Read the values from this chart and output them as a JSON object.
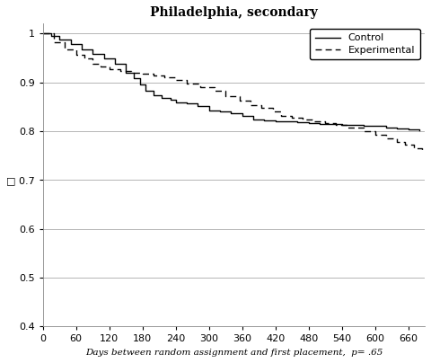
{
  "title": "Philadelphia, secondary",
  "xlabel": "Days between random assignment and first placement,  p= .65",
  "ylabel": "",
  "xlim": [
    0,
    690
  ],
  "ylim": [
    0.4,
    1.02
  ],
  "xticks": [
    0,
    60,
    120,
    180,
    240,
    300,
    360,
    420,
    480,
    540,
    600,
    660
  ],
  "yticks": [
    0.4,
    0.5,
    0.6,
    0.7,
    0.8,
    0.9,
    1.0
  ],
  "control_x": [
    0,
    15,
    30,
    50,
    70,
    90,
    110,
    130,
    150,
    165,
    175,
    185,
    200,
    215,
    230,
    240,
    260,
    280,
    300,
    320,
    340,
    360,
    380,
    400,
    420,
    440,
    460,
    480,
    500,
    520,
    540,
    560,
    580,
    600,
    620,
    640,
    660,
    680
  ],
  "control_y": [
    1.0,
    0.995,
    0.988,
    0.978,
    0.968,
    0.958,
    0.948,
    0.938,
    0.92,
    0.908,
    0.896,
    0.882,
    0.874,
    0.868,
    0.864,
    0.858,
    0.856,
    0.852,
    0.843,
    0.84,
    0.836,
    0.832,
    0.823,
    0.822,
    0.82,
    0.82,
    0.818,
    0.816,
    0.815,
    0.814,
    0.813,
    0.812,
    0.811,
    0.81,
    0.808,
    0.806,
    0.804,
    0.802
  ],
  "exp_x": [
    0,
    20,
    40,
    60,
    75,
    90,
    105,
    120,
    140,
    160,
    180,
    200,
    220,
    240,
    260,
    285,
    310,
    330,
    355,
    375,
    395,
    415,
    430,
    450,
    470,
    490,
    510,
    530,
    550,
    580,
    600,
    620,
    640,
    655,
    670,
    685
  ],
  "exp_y": [
    1.0,
    0.982,
    0.968,
    0.957,
    0.948,
    0.938,
    0.932,
    0.927,
    0.923,
    0.92,
    0.917,
    0.913,
    0.91,
    0.904,
    0.898,
    0.89,
    0.882,
    0.872,
    0.862,
    0.854,
    0.847,
    0.84,
    0.832,
    0.828,
    0.824,
    0.82,
    0.816,
    0.812,
    0.808,
    0.8,
    0.793,
    0.785,
    0.778,
    0.772,
    0.765,
    0.758
  ],
  "legend_labels": [
    "Control",
    "Experimental"
  ],
  "control_color": "#000000",
  "exp_color": "#000000",
  "bg_color": "#ffffff",
  "grid_color": "#aaaaaa",
  "title_fontsize": 10,
  "label_fontsize": 7.5,
  "tick_fontsize": 8,
  "legend_fontsize": 8
}
